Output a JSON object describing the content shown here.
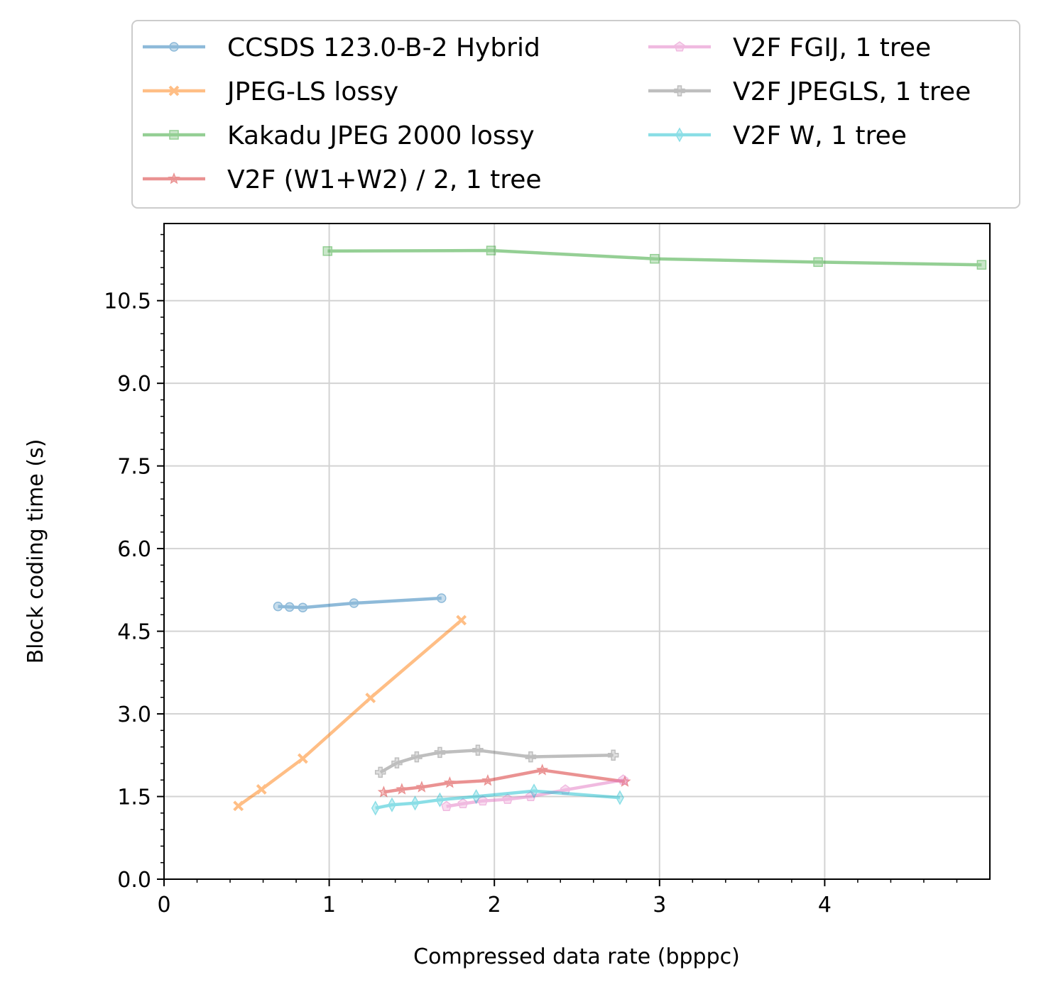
{
  "chart_data": {
    "type": "line",
    "xlabel": "Compressed data rate (bpppc)",
    "ylabel": "Block coding time (s)",
    "xlim": [
      0,
      5.0
    ],
    "ylim": [
      0,
      11.9
    ],
    "x_ticks": [
      0,
      1,
      2,
      3,
      4
    ],
    "y_ticks": [
      0.0,
      1.5,
      3.0,
      4.5,
      6.0,
      7.5,
      9.0,
      10.5
    ],
    "x_tick_labels": [
      "0",
      "1",
      "2",
      "3",
      "4"
    ],
    "y_tick_labels": [
      "0.0",
      "1.5",
      "3.0",
      "4.5",
      "6.0",
      "7.5",
      "9.0",
      "10.5"
    ],
    "grid": true,
    "legend_placement": "top, outside plot, two columns",
    "series": [
      {
        "name": "CCSDS 123.0-B-2 Hybrid",
        "color": "#1f77b4",
        "marker": "circle",
        "x": [
          0.69,
          0.76,
          0.84,
          1.15,
          1.68
        ],
        "y": [
          4.95,
          4.94,
          4.93,
          5.01,
          5.1
        ]
      },
      {
        "name": "JPEG-LS lossy",
        "color": "#ff7f0e",
        "marker": "x",
        "x": [
          0.45,
          0.59,
          0.84,
          1.25,
          1.8
        ],
        "y": [
          1.33,
          1.63,
          2.19,
          3.29,
          4.7
        ]
      },
      {
        "name": "Kakadu JPEG 2000 lossy",
        "color": "#2ca02c",
        "marker": "square",
        "x": [
          0.99,
          1.98,
          2.97,
          3.96,
          4.95
        ],
        "y": [
          11.4,
          11.41,
          11.26,
          11.2,
          11.15
        ]
      },
      {
        "name": "V2F (W1+W2) / 2, 1 tree",
        "color": "#d62728",
        "marker": "star",
        "x": [
          1.33,
          1.44,
          1.56,
          1.73,
          1.96,
          2.29,
          2.79
        ],
        "y": [
          1.58,
          1.63,
          1.67,
          1.75,
          1.79,
          1.98,
          1.77
        ]
      },
      {
        "name": "V2F FGIJ, 1 tree",
        "color": "#e377c2",
        "marker": "pentagon",
        "x": [
          1.71,
          1.81,
          1.93,
          2.08,
          2.22,
          2.43,
          2.78
        ],
        "y": [
          1.32,
          1.37,
          1.42,
          1.45,
          1.5,
          1.62,
          1.8
        ]
      },
      {
        "name": "V2F JPEGLS, 1 tree",
        "color": "#7f7f7f",
        "marker": "plus",
        "x": [
          1.31,
          1.41,
          1.53,
          1.67,
          1.9,
          2.22,
          2.72
        ],
        "y": [
          1.94,
          2.11,
          2.22,
          2.3,
          2.34,
          2.22,
          2.25
        ]
      },
      {
        "name": "V2F W, 1 tree",
        "color": "#17becf",
        "marker": "diamond",
        "x": [
          1.28,
          1.38,
          1.52,
          1.67,
          1.89,
          2.24,
          2.76
        ],
        "y": [
          1.29,
          1.35,
          1.38,
          1.44,
          1.5,
          1.6,
          1.48
        ]
      }
    ]
  }
}
